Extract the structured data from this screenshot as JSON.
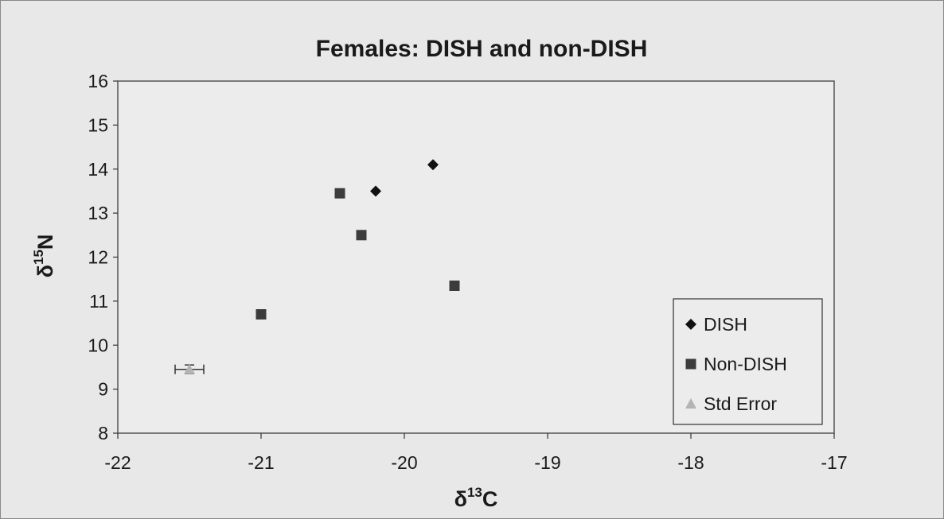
{
  "chart_data": {
    "type": "scatter",
    "title": "Females: DISH and non-DISH",
    "xlabel": {
      "base": "δ",
      "sup": "13",
      "tail": "C"
    },
    "ylabel": {
      "base": "δ",
      "sup": "15",
      "tail": "N"
    },
    "xlim": [
      -22,
      -17
    ],
    "ylim": [
      8,
      16
    ],
    "xticks": [
      -22,
      -21,
      -20,
      -19,
      -18,
      -17
    ],
    "yticks": [
      8,
      9,
      10,
      11,
      12,
      13,
      14,
      15,
      16
    ],
    "grid": false,
    "legend_position": "bottom-right",
    "series": [
      {
        "name": "DISH",
        "marker": "diamond",
        "color": "#111111",
        "points": [
          {
            "x": -20.2,
            "y": 13.5
          },
          {
            "x": -19.8,
            "y": 14.1
          }
        ]
      },
      {
        "name": "Non-DISH",
        "marker": "square",
        "color": "#3c3c3c",
        "points": [
          {
            "x": -20.45,
            "y": 13.45
          },
          {
            "x": -20.3,
            "y": 12.5
          },
          {
            "x": -21.0,
            "y": 10.7
          },
          {
            "x": -19.65,
            "y": 11.35
          }
        ]
      },
      {
        "name": "Std Error",
        "marker": "triangle",
        "color": "#b4b4b4",
        "points": [
          {
            "x": -21.5,
            "y": 9.45,
            "xerr": 0.1,
            "yerr": 0.1
          }
        ]
      }
    ]
  }
}
